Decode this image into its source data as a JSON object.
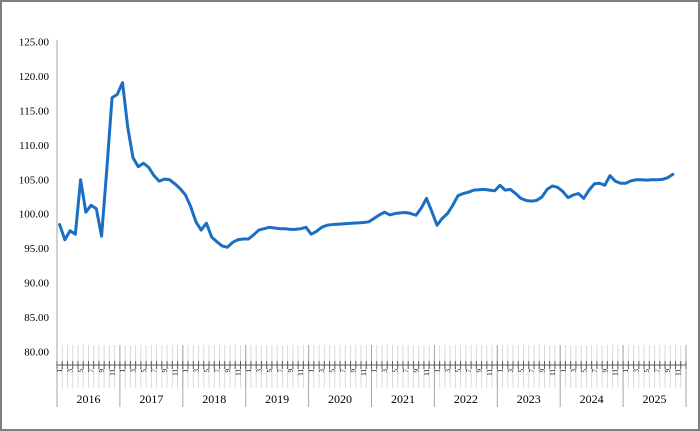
{
  "chart_data": {
    "type": "line",
    "title": "",
    "xlabel": "",
    "ylabel": "",
    "legend": "none",
    "grid": "off",
    "frequency": "monthly",
    "x_start": "2016-01",
    "x_end": "2025-10",
    "ylim": [
      80,
      125
    ],
    "y_tick_labels": [
      "125.00",
      "120.00",
      "115.00",
      "110.00",
      "105.00",
      "100.00",
      "95.00",
      "90.00",
      "85.00",
      "80.00"
    ],
    "years": [
      "2016",
      "2017",
      "2018",
      "2019",
      "2020",
      "2021",
      "2022",
      "2023",
      "2024",
      "2025"
    ],
    "month_tick_labels": [
      "1",
      "3",
      "5",
      "7",
      "9",
      "11"
    ],
    "labeled_month_indices": [
      0,
      2,
      4,
      6,
      8,
      10
    ],
    "months_per_year": 12,
    "line_color": "#1b6fc2",
    "values": [
      98.5,
      96.3,
      97.6,
      97.1,
      105.0,
      100.3,
      101.3,
      100.8,
      96.8,
      106.5,
      116.9,
      117.4,
      119.1,
      112.6,
      108.2,
      106.9,
      107.4,
      106.8,
      105.6,
      104.8,
      105.1,
      105.0,
      104.4,
      103.7,
      102.8,
      101.1,
      98.9,
      97.7,
      98.7,
      96.7,
      96.0,
      95.4,
      95.2,
      95.9,
      96.3,
      96.4,
      96.4,
      97.0,
      97.7,
      97.9,
      98.1,
      98.0,
      97.9,
      97.9,
      97.8,
      97.8,
      97.9,
      98.1,
      97.1,
      97.5,
      98.1,
      98.4,
      98.5,
      98.55,
      98.6,
      98.65,
      98.7,
      98.75,
      98.8,
      98.9,
      99.4,
      99.9,
      100.3,
      99.9,
      100.1,
      100.2,
      100.25,
      100.1,
      99.85,
      100.9,
      102.3,
      100.4,
      98.4,
      99.4,
      100.1,
      101.3,
      102.7,
      103.0,
      103.2,
      103.5,
      103.55,
      103.6,
      103.5,
      103.4,
      104.2,
      103.5,
      103.6,
      103.0,
      102.3,
      102.0,
      101.9,
      102.0,
      102.5,
      103.6,
      104.1,
      103.9,
      103.3,
      102.4,
      102.8,
      103.0,
      102.3,
      103.5,
      104.4,
      104.5,
      104.2,
      105.6,
      104.8,
      104.5,
      104.5,
      104.85,
      105.0,
      105.0,
      104.95,
      105.0,
      105.0,
      105.05,
      105.3,
      105.8
    ],
    "colors": {
      "line": "#1b6fc2",
      "axis_text": "#000000",
      "month_tick_light": "#d9d9d9",
      "year_separator": "#a6a6a6",
      "axis_line": "#595959",
      "frame_border": "#7f7f7f"
    }
  }
}
